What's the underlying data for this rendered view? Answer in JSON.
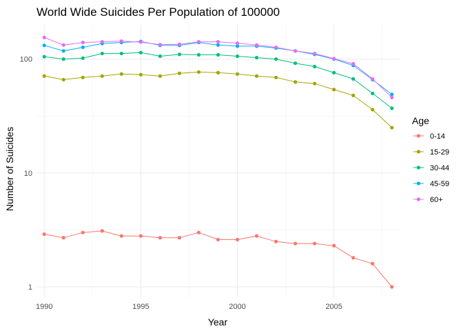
{
  "chart_data": {
    "type": "line",
    "title": "World Wide Suicides Per Population of 100000",
    "xlabel": "Year",
    "ylabel": "Number of Suicides",
    "y_scale": "log10",
    "xlim": [
      1989.6,
      2008.4
    ],
    "ylim": [
      0.8,
      200
    ],
    "x_ticks": [
      1990,
      1995,
      2000,
      2005
    ],
    "x_tick_labels": [
      "1990",
      "1995",
      "2000",
      "2005"
    ],
    "y_ticks": [
      1,
      10,
      100
    ],
    "y_tick_labels": [
      "1",
      "10",
      "100"
    ],
    "grid": true,
    "legend": {
      "title": "Age",
      "position": "right"
    },
    "x": [
      1990,
      1991,
      1992,
      1993,
      1994,
      1995,
      1996,
      1997,
      1998,
      1999,
      2000,
      2001,
      2002,
      2003,
      2004,
      2005,
      2006,
      2007,
      2008
    ],
    "series": [
      {
        "name": "0-14",
        "color": "#F8766D",
        "values": [
          2.9,
          2.7,
          3.0,
          3.1,
          2.8,
          2.8,
          2.7,
          2.7,
          3.0,
          2.6,
          2.6,
          2.8,
          2.5,
          2.4,
          2.4,
          2.3,
          1.8,
          1.6,
          1.0
        ]
      },
      {
        "name": "15-29",
        "color": "#A3A500",
        "values": [
          71,
          66,
          69,
          71,
          74,
          73,
          71,
          75,
          77,
          76,
          74,
          71,
          69,
          63,
          61,
          54,
          48,
          36,
          25
        ]
      },
      {
        "name": "30-44",
        "color": "#00BF7D",
        "values": [
          105,
          100,
          102,
          112,
          112,
          114,
          106,
          110,
          109,
          109,
          106,
          103,
          100,
          92,
          86,
          76,
          67,
          50,
          37
        ]
      },
      {
        "name": "45-59",
        "color": "#00B0F6",
        "values": [
          132,
          118,
          127,
          137,
          140,
          143,
          132,
          132,
          140,
          133,
          130,
          130,
          125,
          118,
          110,
          100,
          88,
          66,
          49
        ]
      },
      {
        "name": "60+",
        "color": "#E76BF3",
        "values": [
          155,
          133,
          140,
          142,
          144,
          141,
          134,
          135,
          142,
          142,
          138,
          133,
          127,
          118,
          112,
          101,
          91,
          67,
          46
        ]
      }
    ]
  }
}
